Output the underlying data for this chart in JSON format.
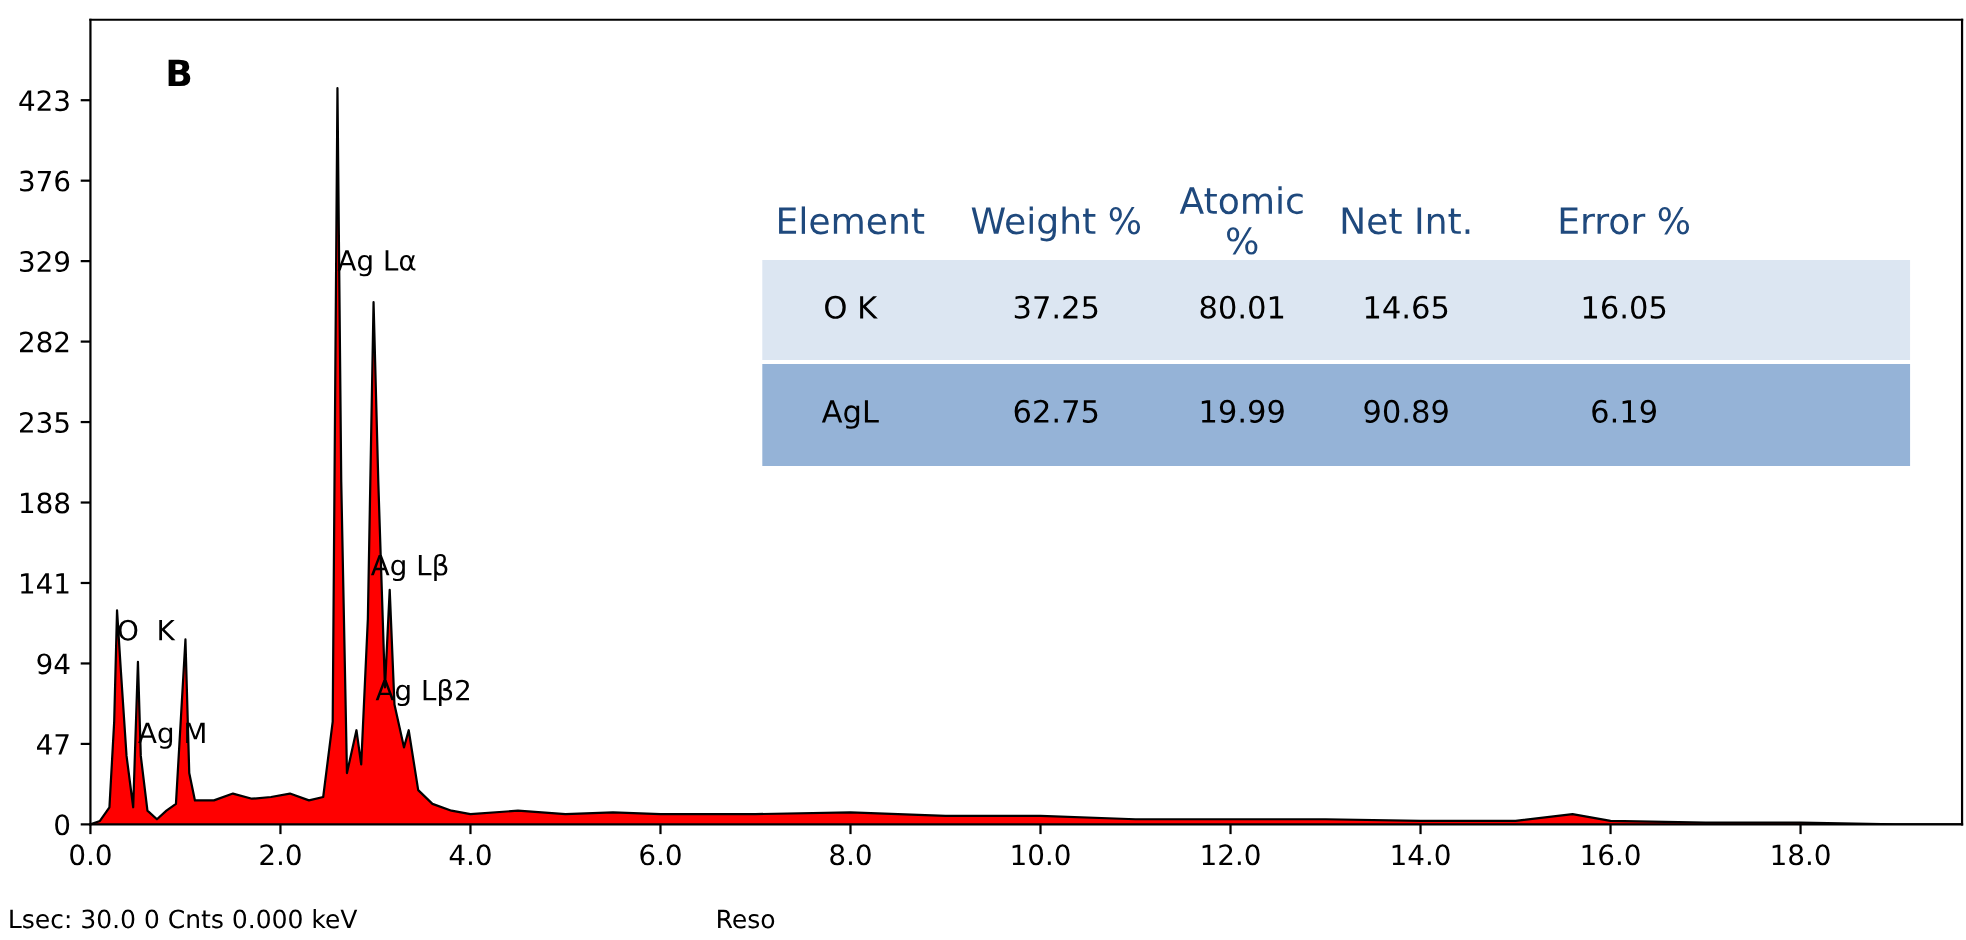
{
  "chart_data": {
    "type": "area",
    "color": "#ff0000",
    "x": [
      0.0,
      0.1,
      0.2,
      0.25,
      0.28,
      0.32,
      0.38,
      0.45,
      0.5,
      0.53,
      0.6,
      0.7,
      0.8,
      0.9,
      1.0,
      1.04,
      1.1,
      1.3,
      1.5,
      1.7,
      1.9,
      2.1,
      2.3,
      2.45,
      2.55,
      2.6,
      2.64,
      2.7,
      2.8,
      2.85,
      2.92,
      2.98,
      3.03,
      3.1,
      3.15,
      3.2,
      3.3,
      3.35,
      3.45,
      3.6,
      3.8,
      4.0,
      4.5,
      5.0,
      5.5,
      6.0,
      7.0,
      8.0,
      9.0,
      10.0,
      11.0,
      12.0,
      13.0,
      14.0,
      15.0,
      15.6,
      16.0,
      17.0,
      18.0,
      19.0,
      19.7
    ],
    "values": [
      0,
      2,
      10,
      60,
      125,
      90,
      40,
      10,
      95,
      40,
      8,
      3,
      8,
      12,
      108,
      30,
      14,
      14,
      18,
      15,
      16,
      18,
      14,
      16,
      60,
      430,
      200,
      30,
      55,
      35,
      120,
      305,
      200,
      80,
      137,
      70,
      45,
      55,
      20,
      12,
      8,
      6,
      8,
      6,
      7,
      6,
      6,
      7,
      5,
      5,
      3,
      3,
      3,
      2,
      2,
      6,
      2,
      1,
      1,
      0,
      0
    ],
    "xlim": [
      0,
      19.7
    ],
    "ylim": [
      0,
      470
    ],
    "xticks": [
      {
        "value": 0,
        "label": "0.0"
      },
      {
        "value": 2,
        "label": "2.0"
      },
      {
        "value": 4,
        "label": "4.0"
      },
      {
        "value": 6,
        "label": "6.0"
      },
      {
        "value": 8,
        "label": "8.0"
      },
      {
        "value": 10,
        "label": "10.0"
      },
      {
        "value": 12,
        "label": "12.0"
      },
      {
        "value": 14,
        "label": "14.0"
      },
      {
        "value": 16,
        "label": "16.0"
      },
      {
        "value": 18,
        "label": "18.0"
      }
    ],
    "yticks": [
      0,
      47,
      94,
      141,
      188,
      235,
      282,
      329,
      376,
      423
    ],
    "grid": false,
    "legend": false,
    "annotations": [
      "B",
      {
        "text": "O  K",
        "x": 0.28,
        "y": 112
      },
      {
        "text": "Ag M",
        "x": 0.5,
        "y": 52
      },
      {
        "text": "Ag Lα",
        "x": 2.6,
        "y": 328
      },
      {
        "text": "Ag Lβ",
        "x": 2.95,
        "y": 150
      },
      {
        "text": "Ag Lβ2",
        "x": 3.0,
        "y": 77
      },
      "Element",
      "Weight %",
      "Atomic\n%",
      "Net Int.",
      "Error %",
      "O K",
      "37.25",
      "80.01",
      "14.65",
      "16.05",
      "AgL",
      "62.75",
      "19.99",
      "90.89",
      "6.19",
      "Lsec: 30.0 0 Cnts 0.000 keV",
      "Reso"
    ]
  }
}
